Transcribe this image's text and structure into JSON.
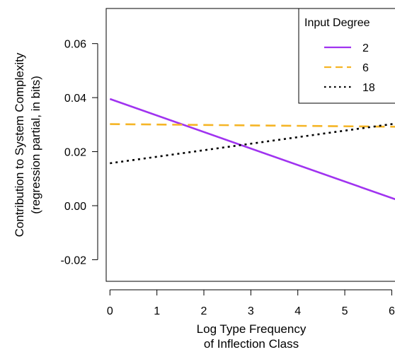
{
  "chart_data": {
    "type": "line",
    "xlabel_lines": [
      "Log Type Frequency",
      "of Inflection Class"
    ],
    "ylabel_lines": [
      "Contribution to System Complexity",
      "(regression partial, in bits)"
    ],
    "xlim": [
      -0.08,
      6.25
    ],
    "ylim": [
      -0.028,
      0.073
    ],
    "xticks": [
      0,
      1,
      2,
      3,
      4,
      5,
      6
    ],
    "xtick_labels": [
      "0",
      "1",
      "2",
      "3",
      "4",
      "5",
      "6"
    ],
    "yticks": [
      -0.02,
      0.0,
      0.02,
      0.04,
      0.06
    ],
    "ytick_labels": [
      "-0.02",
      "0.00",
      "0.02",
      "0.04",
      "0.06"
    ],
    "legend": {
      "title": "Input Degree",
      "placement": "top-right"
    },
    "series": [
      {
        "name": "2",
        "color": "#a033f0",
        "dash": "solid",
        "x": [
          0,
          6.25
        ],
        "y": [
          0.0395,
          0.0013
        ]
      },
      {
        "name": "6",
        "color": "#f5b526",
        "dash": "dashed",
        "x": [
          0,
          6.25
        ],
        "y": [
          0.0302,
          0.0292
        ]
      },
      {
        "name": "18",
        "color": "#000000",
        "dash": "dotted",
        "x": [
          0,
          6.25
        ],
        "y": [
          0.0157,
          0.0308
        ]
      }
    ]
  }
}
